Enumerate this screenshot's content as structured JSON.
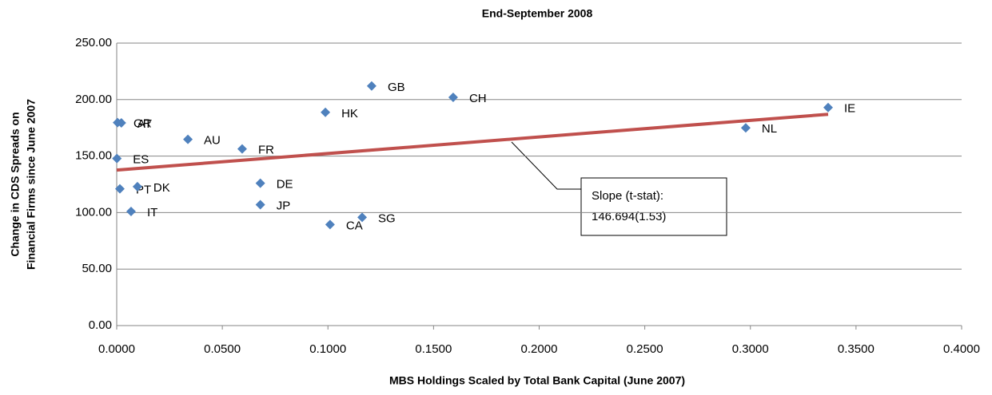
{
  "chart_data": {
    "type": "scatter",
    "title": "End-September 2008",
    "xlabel": "MBS Holdings Scaled by Total Bank Capital (June 2007)",
    "ylabel": [
      "Change in CDS Spreads on",
      "Financial Firms since June 2007"
    ],
    "series": [
      {
        "color": "#4f81bd",
        "labels": [
          "GR",
          "AT",
          "ES",
          "PT",
          "DK",
          "IT",
          "AU",
          "FR",
          "DE",
          "JP",
          "HK",
          "GB",
          "CH",
          "CA",
          "SG",
          "NL",
          "IE"
        ],
        "x": [
          0.0004,
          0.0022,
          0.0001,
          0.0015,
          0.0098,
          0.0068,
          0.0337,
          0.0594,
          0.068,
          0.068,
          0.0988,
          0.1207,
          0.1593,
          0.101,
          0.1162,
          0.2978,
          0.3368
        ],
        "values": [
          179.6,
          179.4,
          147.9,
          121,
          123,
          101,
          164.8,
          156.3,
          126,
          107,
          188.7,
          212,
          202,
          89.4,
          95.8,
          175,
          193
        ]
      }
    ],
    "trendline": {
      "color": "#c0504d",
      "x": [
        0,
        0.3368
      ],
      "values": [
        137.6,
        187
      ]
    },
    "annotation": [
      "Slope (t-stat):",
      "146.694(1.53)"
    ],
    "xlim": [
      0,
      0.4
    ],
    "ylim": [
      0,
      250
    ],
    "xticks": [
      {
        "value": 0,
        "label": "0.0000"
      },
      {
        "value": 0.05,
        "label": "0.0500"
      },
      {
        "value": 0.1,
        "label": "0.1000"
      },
      {
        "value": 0.15,
        "label": "0.1500"
      },
      {
        "value": 0.2,
        "label": "0.2000"
      },
      {
        "value": 0.25,
        "label": "0.2500"
      },
      {
        "value": 0.3,
        "label": "0.3000"
      },
      {
        "value": 0.35,
        "label": "0.3500"
      },
      {
        "value": 0.4,
        "label": "0.4000"
      }
    ],
    "yticks": [
      {
        "value": 0,
        "label": "0.00"
      },
      {
        "value": 50,
        "label": "50.00"
      },
      {
        "value": 100,
        "label": "100.00"
      },
      {
        "value": 150,
        "label": "150.00"
      },
      {
        "value": 200,
        "label": "200.00"
      },
      {
        "value": 250,
        "label": "250.00"
      }
    ],
    "grid": true
  }
}
